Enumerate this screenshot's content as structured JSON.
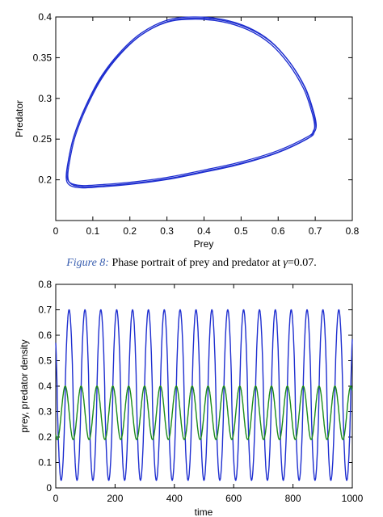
{
  "caption": {
    "label": "Figure 8:",
    "text": "Phase portrait of prey and predator at",
    "symbol": "γ",
    "equals_value": "=0.07."
  },
  "chart_data": [
    {
      "type": "line",
      "xlabel": "Prey",
      "ylabel": "Predator",
      "xlim": [
        0,
        0.8
      ],
      "ylim": [
        0.15,
        0.4
      ],
      "xticks": [
        "0",
        "0.1",
        "0.2",
        "0.3",
        "0.4",
        "0.5",
        "0.6",
        "0.7",
        "0.8"
      ],
      "yticks": [
        "0.2",
        "0.25",
        "0.3",
        "0.35",
        "0.4"
      ],
      "grid": false,
      "series": [
        {
          "color": "#1f2fd0",
          "x": [
            0.37,
            0.45,
            0.52,
            0.58,
            0.63,
            0.67,
            0.69,
            0.7,
            0.695,
            0.68,
            0.6,
            0.5,
            0.4,
            0.3,
            0.2,
            0.12,
            0.07,
            0.04,
            0.03,
            0.035,
            0.05,
            0.08,
            0.12,
            0.17,
            0.23,
            0.3,
            0.37
          ],
          "y": [
            0.4,
            0.397,
            0.387,
            0.37,
            0.345,
            0.315,
            0.29,
            0.27,
            0.26,
            0.253,
            0.236,
            0.222,
            0.212,
            0.203,
            0.197,
            0.194,
            0.193,
            0.196,
            0.205,
            0.225,
            0.255,
            0.29,
            0.325,
            0.355,
            0.38,
            0.396,
            0.4
          ]
        }
      ]
    },
    {
      "type": "line",
      "xlabel": "time",
      "ylabel": "prey, predator density",
      "xlim": [
        0,
        1000
      ],
      "ylim": [
        0,
        0.8
      ],
      "xticks": [
        "0",
        "200",
        "400",
        "600",
        "800",
        "1000"
      ],
      "yticks": [
        "0",
        "0.1",
        "0.2",
        "0.3",
        "0.4",
        "0.5",
        "0.6",
        "0.7",
        "0.8"
      ],
      "grid": false,
      "period": 53.5,
      "series": [
        {
          "color": "#1f2fd0",
          "min": 0.03,
          "max": 0.7,
          "first_peak": 45
        },
        {
          "color": "#1a8a1a",
          "min": 0.19,
          "max": 0.4,
          "first_peak": 32
        }
      ]
    }
  ]
}
